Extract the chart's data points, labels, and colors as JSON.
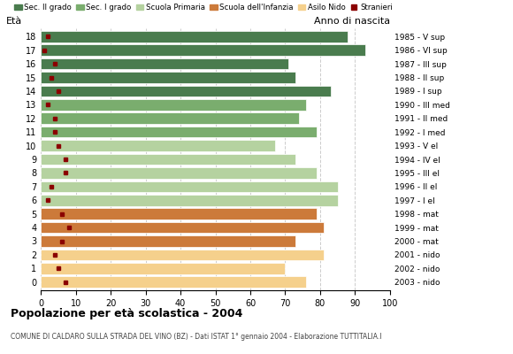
{
  "ages": [
    18,
    17,
    16,
    15,
    14,
    13,
    12,
    11,
    10,
    9,
    8,
    7,
    6,
    5,
    4,
    3,
    2,
    1,
    0
  ],
  "years": [
    "1985 - V sup",
    "1986 - VI sup",
    "1987 - III sup",
    "1988 - II sup",
    "1989 - I sup",
    "1990 - III med",
    "1991 - II med",
    "1992 - I med",
    "1993 - V el",
    "1994 - IV el",
    "1995 - III el",
    "1996 - II el",
    "1997 - I el",
    "1998 - mat",
    "1999 - mat",
    "2000 - mat",
    "2001 - nido",
    "2002 - nido",
    "2003 - nido"
  ],
  "bar_values": [
    88,
    93,
    71,
    73,
    83,
    76,
    74,
    79,
    67,
    73,
    79,
    85,
    85,
    79,
    81,
    73,
    81,
    70,
    76
  ],
  "stranieri_values": [
    2,
    1,
    4,
    3,
    5,
    2,
    4,
    4,
    5,
    7,
    7,
    3,
    2,
    6,
    8,
    6,
    4,
    5,
    7
  ],
  "colors_by_age": {
    "18": "#4a7c4e",
    "17": "#4a7c4e",
    "16": "#4a7c4e",
    "15": "#4a7c4e",
    "14": "#4a7c4e",
    "13": "#7aad6e",
    "12": "#7aad6e",
    "11": "#7aad6e",
    "10": "#b5d2a0",
    "9": "#b5d2a0",
    "8": "#b5d2a0",
    "7": "#b5d2a0",
    "6": "#b5d2a0",
    "5": "#cc7a3a",
    "4": "#cc7a3a",
    "3": "#cc7a3a",
    "2": "#f5d08c",
    "1": "#f5d08c",
    "0": "#f5d08c"
  },
  "stranieri_color": "#8b0000",
  "background_color": "#ffffff",
  "grid_color": "#cccccc",
  "title": "Popolazione per età scolastica - 2004",
  "subtitle": "COMUNE DI CALDARO SULLA STRADA DEL VINO (BZ) - Dati ISTAT 1° gennaio 2004 - Elaborazione TUTTITALIA.I",
  "ylabel_left": "Età",
  "ylabel_right": "Anno di nascita",
  "xlim": [
    0,
    100
  ],
  "xticks": [
    0,
    10,
    20,
    30,
    40,
    50,
    60,
    70,
    80,
    90,
    100
  ],
  "legend_labels": [
    "Sec. II grado",
    "Sec. I grado",
    "Scuola Primaria",
    "Scuola dell'Infanzia",
    "Asilo Nido",
    "Stranieri"
  ],
  "legend_colors": [
    "#4a7c4e",
    "#7aad6e",
    "#b5d2a0",
    "#cc7a3a",
    "#f5d08c",
    "#8b0000"
  ]
}
